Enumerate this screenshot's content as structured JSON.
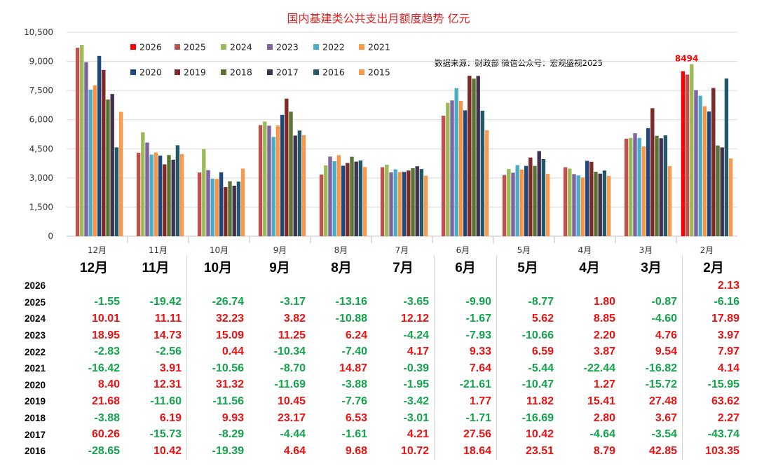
{
  "chart_data": {
    "type": "bar",
    "title": "国内基建类公共支出月额度趋势 亿元",
    "source_note": "数据来源：财政部 微信公众号：宏观盛视2025",
    "highlight_label": "8494",
    "ylim": [
      0,
      10500
    ],
    "yticks": [
      "0",
      "1,500",
      "3,000",
      "4,500",
      "6,000",
      "7,500",
      "9,000",
      "10,500"
    ],
    "categories": [
      "12月",
      "11月",
      "10月",
      "9月",
      "8月",
      "7月",
      "6月",
      "5月",
      "4月",
      "3月",
      "2月"
    ],
    "series": [
      {
        "name": "2026",
        "color": "#ff0000",
        "values": [
          null,
          null,
          null,
          null,
          null,
          null,
          null,
          null,
          null,
          null,
          8494
        ]
      },
      {
        "name": "2025",
        "color": "#c0504d",
        "values": [
          9700,
          4300,
          3280,
          5720,
          3170,
          3550,
          6200,
          3150,
          3550,
          5020,
          8320
        ]
      },
      {
        "name": "2024",
        "color": "#9bbb59",
        "values": [
          9850,
          5350,
          4480,
          5900,
          3640,
          3680,
          6870,
          3460,
          3480,
          5060,
          8860
        ]
      },
      {
        "name": "2023",
        "color": "#8064a2",
        "values": [
          8960,
          4820,
          3400,
          5690,
          4100,
          3290,
          6990,
          3270,
          3200,
          5300,
          7520
        ]
      },
      {
        "name": "2022",
        "color": "#4bacc6",
        "values": [
          7550,
          4200,
          2960,
          5110,
          3860,
          3440,
          7620,
          3660,
          3130,
          5060,
          7230
        ]
      },
      {
        "name": "2021",
        "color": "#f79646",
        "values": [
          7770,
          4310,
          2950,
          5700,
          4170,
          3300,
          6970,
          3430,
          3020,
          4620,
          6690
        ]
      },
      {
        "name": "2020",
        "color": "#1f497d",
        "values": [
          9280,
          4150,
          3290,
          6250,
          3630,
          3310,
          6480,
          3620,
          3880,
          5560,
          6420
        ]
      },
      {
        "name": "2019",
        "color": "#7f2a28",
        "values": [
          8560,
          3700,
          2530,
          7080,
          3770,
          3380,
          8260,
          4050,
          3830,
          6590,
          7630
        ]
      },
      {
        "name": "2018",
        "color": "#5a7531",
        "values": [
          7040,
          4180,
          2830,
          6410,
          4090,
          3500,
          8110,
          3620,
          3320,
          5170,
          4670
        ]
      },
      {
        "name": "2017",
        "color": "#403151",
        "values": [
          7320,
          3940,
          2600,
          5180,
          3840,
          3600,
          8250,
          4380,
          3220,
          5040,
          4570
        ]
      },
      {
        "name": "2016",
        "color": "#215968",
        "values": [
          4570,
          4680,
          2810,
          5440,
          3900,
          3460,
          6460,
          3970,
          3380,
          5190,
          8120
        ]
      },
      {
        "name": "2015",
        "color": "#fa9a4f",
        "values": [
          6400,
          4230,
          3480,
          5200,
          3560,
          3120,
          5450,
          3210,
          3110,
          3610,
          4000
        ]
      }
    ]
  },
  "table": {
    "headers": [
      "12月",
      "11月",
      "10月",
      "9月",
      "8月",
      "7月",
      "6月",
      "5月",
      "4月",
      "3月",
      "2月"
    ],
    "rows": [
      {
        "year": "2026",
        "values": [
          "",
          "",
          "",
          "",
          "",
          "",
          "",
          "",
          "",
          "",
          "2.13"
        ]
      },
      {
        "year": "2025",
        "values": [
          "-1.55",
          "-19.42",
          "-26.74",
          "-3.17",
          "-13.16",
          "-3.65",
          "-9.90",
          "-8.77",
          "1.80",
          "-0.87",
          "-6.16"
        ]
      },
      {
        "year": "2024",
        "values": [
          "10.01",
          "11.11",
          "32.23",
          "3.82",
          "-10.88",
          "12.12",
          "-1.67",
          "5.62",
          "8.85",
          "-4.60",
          "17.89"
        ]
      },
      {
        "year": "2023",
        "values": [
          "18.95",
          "14.73",
          "15.09",
          "11.25",
          "6.24",
          "-4.24",
          "-7.93",
          "-10.66",
          "2.20",
          "4.76",
          "3.97"
        ]
      },
      {
        "year": "2022",
        "values": [
          "-2.83",
          "-2.56",
          "0.44",
          "-10.34",
          "-7.40",
          "4.17",
          "9.33",
          "6.59",
          "3.87",
          "9.54",
          "7.97"
        ]
      },
      {
        "year": "2021",
        "values": [
          "-16.42",
          "3.91",
          "-10.56",
          "-8.70",
          "14.87",
          "-0.39",
          "7.64",
          "-5.44",
          "-22.44",
          "-16.82",
          "4.14"
        ]
      },
      {
        "year": "2020",
        "values": [
          "8.40",
          "12.31",
          "31.32",
          "-11.69",
          "-3.88",
          "-1.95",
          "-21.61",
          "-10.47",
          "1.27",
          "-15.72",
          "-15.95"
        ]
      },
      {
        "year": "2019",
        "values": [
          "21.68",
          "-11.60",
          "-11.56",
          "10.45",
          "-7.76",
          "-3.42",
          "1.77",
          "11.82",
          "15.41",
          "27.48",
          "63.62"
        ]
      },
      {
        "year": "2018",
        "values": [
          "-3.88",
          "6.19",
          "9.93",
          "23.17",
          "6.53",
          "-3.01",
          "-1.71",
          "-16.69",
          "2.80",
          "3.67",
          "2.27"
        ]
      },
      {
        "year": "2017",
        "values": [
          "60.26",
          "-15.73",
          "-8.29",
          "-4.44",
          "-1.61",
          "4.21",
          "27.56",
          "10.42",
          "-4.64",
          "-3.54",
          "-43.74"
        ]
      },
      {
        "year": "2016",
        "values": [
          "-28.65",
          "10.42",
          "-19.39",
          "4.64",
          "9.68",
          "10.72",
          "18.64",
          "23.51",
          "8.79",
          "42.85",
          "103.35"
        ]
      }
    ]
  }
}
